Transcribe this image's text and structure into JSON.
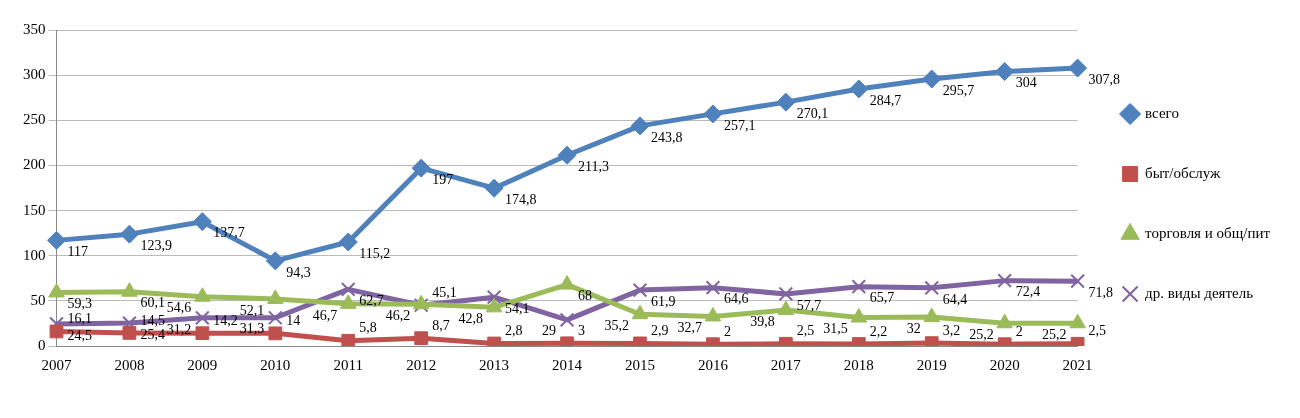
{
  "chart_data": {
    "type": "line",
    "categories": [
      "2007",
      "2008",
      "2009",
      "2010",
      "2011",
      "2012",
      "2013",
      "2014",
      "2015",
      "2016",
      "2017",
      "2018",
      "2019",
      "2020",
      "2021"
    ],
    "series": [
      {
        "name": "всего",
        "color": "#4f81bd",
        "marker": "diamond",
        "values": [
          117,
          123.9,
          137.7,
          94.3,
          115.2,
          197,
          174.8,
          211.3,
          243.8,
          257.1,
          270.1,
          284.7,
          295.7,
          304,
          307.8
        ],
        "value_labels": [
          "117",
          "123,9",
          "137,7",
          "94,3",
          "115,2",
          "197",
          "174,8",
          "211,3",
          "243,8",
          "257,1",
          "270,1",
          "284,7",
          "295,7",
          "304",
          "307,8"
        ]
      },
      {
        "name": "быт/обслуж",
        "color": "#c0504d",
        "marker": "square",
        "values": [
          16.1,
          14.5,
          14.2,
          14,
          5.8,
          8.7,
          2.8,
          3,
          2.9,
          2,
          2.5,
          2.2,
          3.2,
          2,
          2.5
        ],
        "value_labels": [
          "16,1",
          "14,5",
          "14,2",
          "14",
          "5,8",
          "8,7",
          "2,8",
          "3",
          "2,9",
          "2",
          "2,5",
          "2,2",
          "3,2",
          "2",
          "2,5"
        ]
      },
      {
        "name": "торговля и общ/пит",
        "color": "#9bbb59",
        "marker": "triangle",
        "values": [
          59.3,
          60.1,
          54.6,
          52.1,
          46.7,
          46.2,
          42.8,
          68,
          35.2,
          32.7,
          39.8,
          31.5,
          32,
          25.2,
          25.2
        ],
        "value_labels": [
          "59,3",
          "60,1",
          "54,6",
          "52,1",
          "46,7",
          "46,2",
          "42,8",
          "68",
          "35,2",
          "32,7",
          "39,8",
          "31,5",
          "32",
          "25,2",
          "25,2"
        ]
      },
      {
        "name": "др. виды деятель",
        "color": "#8064a2",
        "marker": "cross",
        "values": [
          24.5,
          25.4,
          31.2,
          31.3,
          62.7,
          45.1,
          54.1,
          29,
          61.9,
          64.6,
          57.7,
          65.7,
          64.4,
          72.4,
          71.8
        ],
        "value_labels": [
          "24,5",
          "25,4",
          "31,2",
          "31,3",
          "62,7",
          "45,1",
          "54,1",
          "29",
          "61,9",
          "64,6",
          "57,7",
          "65,7",
          "64,4",
          "72,4",
          "71,8"
        ]
      }
    ],
    "ylim": [
      0,
      350
    ],
    "yticks": [
      0,
      50,
      100,
      150,
      200,
      250,
      300,
      350
    ],
    "grid": "y",
    "legend": "right"
  }
}
